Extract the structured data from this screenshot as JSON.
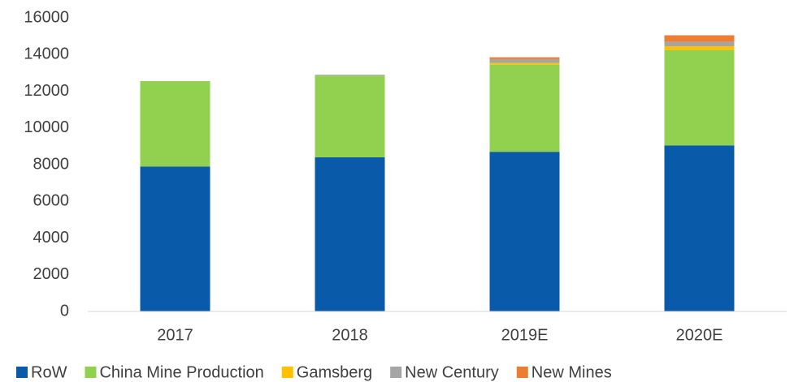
{
  "chart_data": {
    "type": "stacked_bar",
    "categories": [
      "2017",
      "2018",
      "2019E",
      "2020E"
    ],
    "series": [
      {
        "name": "RoW",
        "color": "#0a5aaa",
        "values": [
          7900,
          8400,
          8700,
          9050
        ]
      },
      {
        "name": "China Mine Production",
        "color": "#92d050",
        "values": [
          4650,
          4450,
          4750,
          5200
        ]
      },
      {
        "name": "Gamsberg",
        "color": "#ffc000",
        "values": [
          0,
          0,
          100,
          200
        ]
      },
      {
        "name": "New Century",
        "color": "#a5a5a5",
        "values": [
          0,
          50,
          200,
          250
        ]
      },
      {
        "name": "New Mines",
        "color": "#ed7d31",
        "values": [
          0,
          0,
          100,
          350
        ]
      }
    ],
    "ylim": [
      0,
      16000
    ],
    "yticks": [
      0,
      2000,
      4000,
      6000,
      8000,
      10000,
      12000,
      14000,
      16000
    ],
    "grid": false,
    "legend": "bottom"
  }
}
